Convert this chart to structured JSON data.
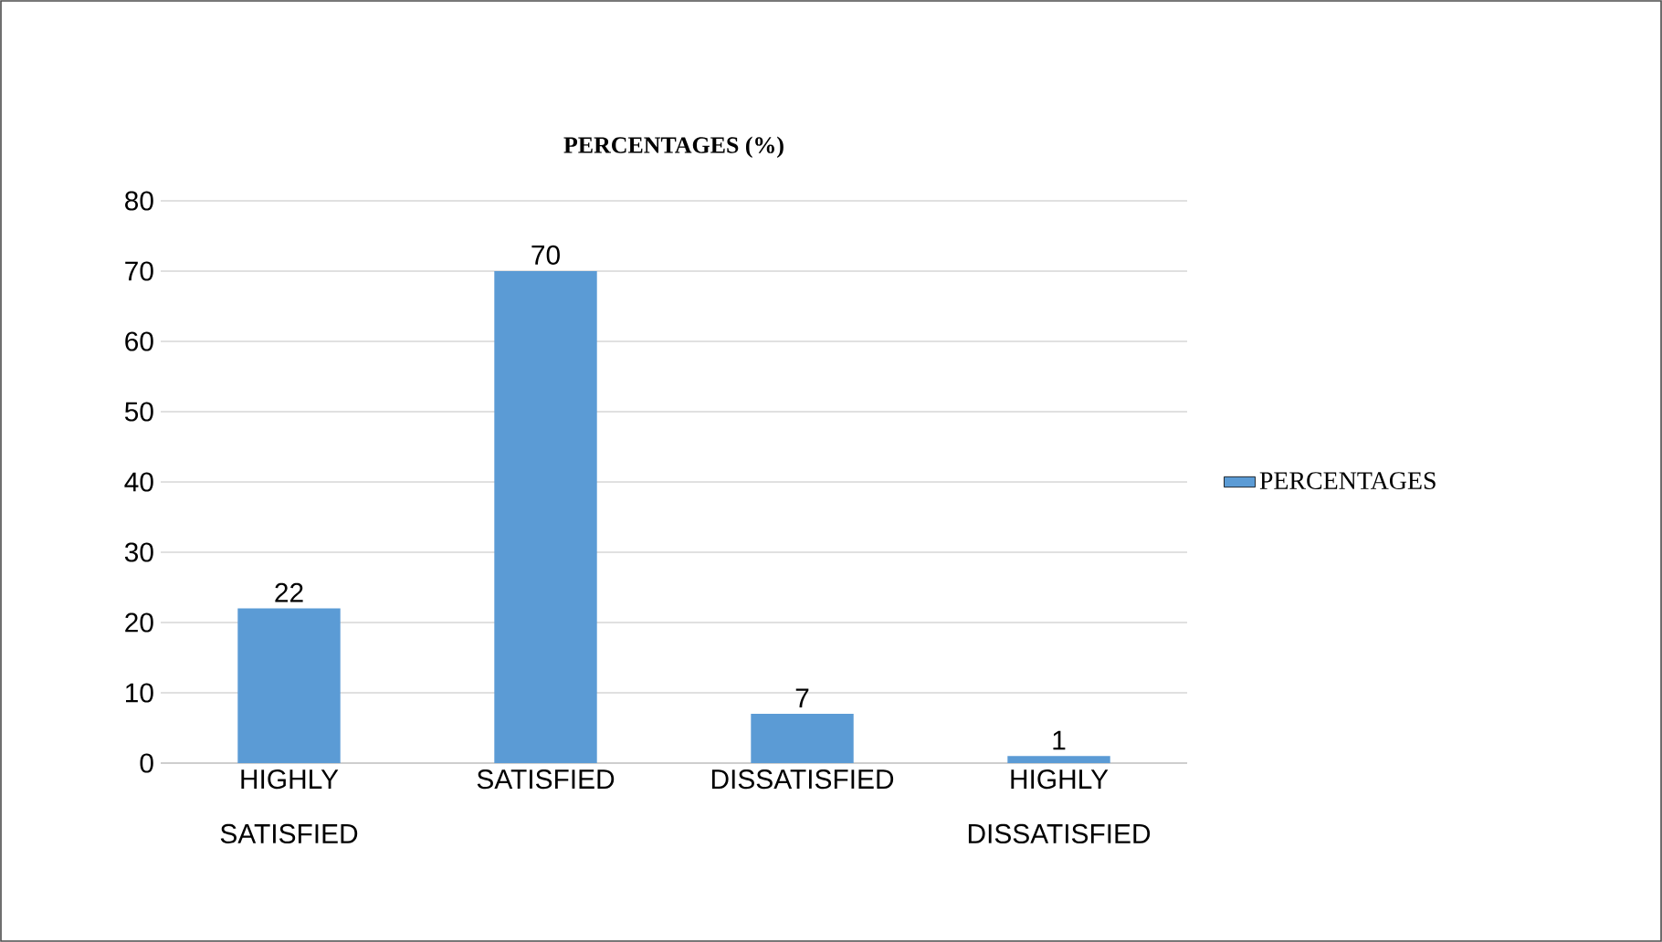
{
  "chart_data": {
    "type": "bar",
    "title": "PERCENTAGES (%)",
    "categories": [
      "HIGHLY SATISFIED",
      "SATISFIED",
      "DISSATISFIED",
      "HIGHLY DISSATISFIED"
    ],
    "series": [
      {
        "name": "PERCENTAGES",
        "color": "#5b9bd5",
        "values": [
          22,
          70,
          7,
          1
        ]
      }
    ],
    "ylim": [
      0,
      80
    ],
    "yticks": [
      0,
      10,
      20,
      30,
      40,
      50,
      60,
      70,
      80
    ],
    "grid": "y",
    "legend": "right",
    "data_labels": true
  }
}
